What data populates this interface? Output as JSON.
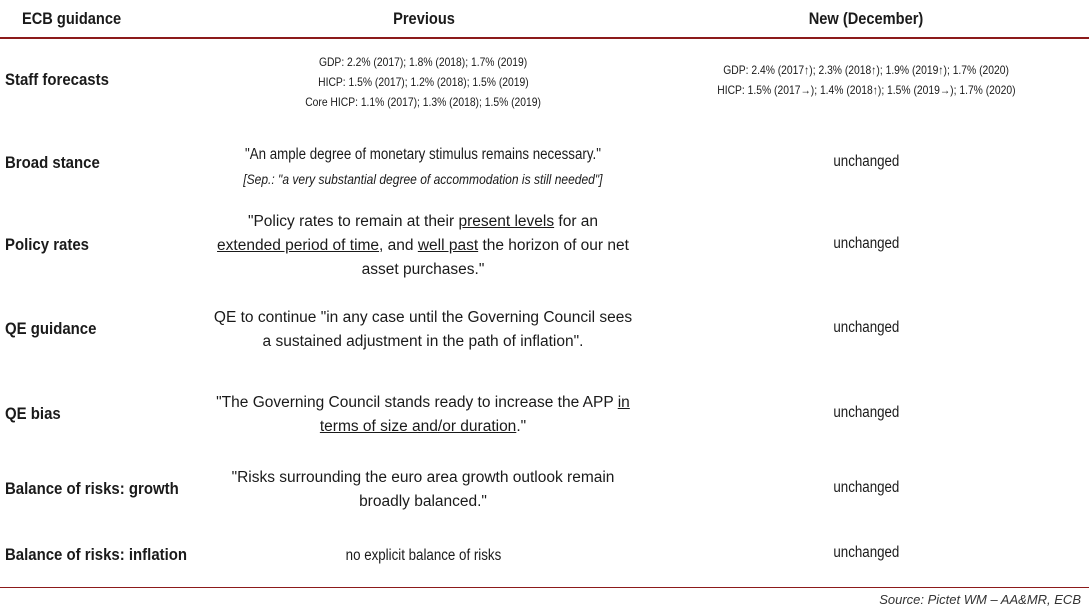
{
  "header": {
    "col1": "ECB guidance",
    "col2": "Previous",
    "col3": "New (December)"
  },
  "rows": [
    {
      "label": "Staff forecasts",
      "previous_lines": [
        "GDP: 2.2% (2017); 1.8% (2018); 1.7% (2019)",
        "HICP: 1.5% (2017); 1.2% (2018); 1.5% (2019)",
        "Core HICP: 1.1% (2017); 1.3% (2018); 1.5% (2019)"
      ],
      "new_lines": [
        "GDP: 2.4% (2017↑); 2.3% (2018↑); 1.9% (2019↑); 1.7% (2020)",
        "HICP: 1.5% (2017→); 1.4% (2018↑); 1.5% (2019→); 1.7% (2020)"
      ]
    },
    {
      "label": "Broad stance",
      "previous_main": "\"An ample degree of monetary stimulus remains necessary.\"",
      "previous_note": "[Sep.: \"a very substantial degree of accommodation is still needed\"]",
      "new": "unchanged"
    },
    {
      "label": "Policy rates",
      "previous_parts": [
        "\"Policy rates to remain at their ",
        "present levels",
        " for an ",
        "extended period of time",
        ", and ",
        "well past",
        " the horizon of our net asset purchases.\""
      ],
      "new": "unchanged"
    },
    {
      "label": "QE guidance",
      "previous": "QE to continue \"in any case until the Governing Council sees a sustained adjustment in the path of inflation\".",
      "new": "unchanged"
    },
    {
      "label": "QE bias",
      "previous_parts": [
        "\"The Governing Council stands ready to increase the APP ",
        "in terms of size and/or duration",
        ".\""
      ],
      "new": "unchanged"
    },
    {
      "label": "Balance of risks: growth",
      "previous": "\"Risks surrounding the euro area growth outlook remain broadly balanced.\"",
      "new": "unchanged"
    },
    {
      "label": "Balance of risks: inflation",
      "previous": "no explicit balance of risks",
      "new": "unchanged"
    }
  ],
  "source": "Source: Pictet WM – AA&MR, ECB",
  "colors": {
    "rule": "#8c1a1a"
  }
}
